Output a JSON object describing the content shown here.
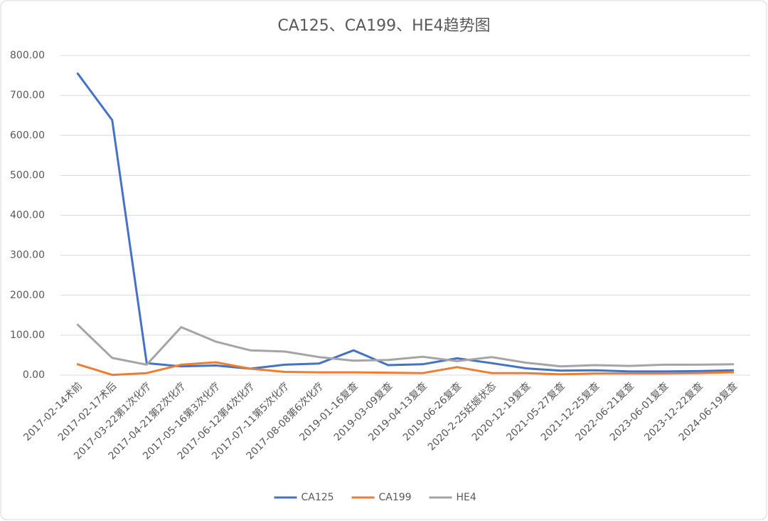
{
  "chart_data": {
    "type": "line",
    "title": "CA125、CA199、HE4趋势图",
    "categories": [
      "2017-02-14术前",
      "2017-02-17术后",
      "2017-03-22第1次化疗",
      "2017-04-21第2次化疗",
      "2017-05-16第3次化疗",
      "2017-06-12第4次化疗",
      "2017-07-11第5次化疗",
      "2017-08-08第6次化疗",
      "2019-01-16复查",
      "2019-03-09复查",
      "2019-04-13复查",
      "2019-06-26复查",
      "2020-2-25妊娠状态",
      "2020-12-19复查",
      "2021-05-27复查",
      "2021-12-25复查",
      "2022-06-21复查",
      "2023-06-01复查",
      "2023-12-22复查",
      "2024-06-19复查"
    ],
    "series": [
      {
        "name": "CA125",
        "color": "#4472c4",
        "values": [
          755,
          638,
          30,
          22,
          24,
          16,
          26,
          29,
          62,
          25,
          27,
          42,
          30,
          17,
          11,
          12,
          9,
          9,
          10,
          12
        ]
      },
      {
        "name": "CA199",
        "color": "#ed7d31",
        "values": [
          27,
          0.5,
          5,
          26,
          32,
          16,
          8,
          7,
          7,
          6,
          5,
          20,
          5,
          5,
          2,
          4,
          4,
          4,
          5,
          7
        ]
      },
      {
        "name": "HE4",
        "color": "#a5a5a5",
        "values": [
          126,
          43,
          26,
          120,
          84,
          62,
          59,
          45,
          36,
          38,
          46,
          35,
          45,
          31,
          22,
          25,
          23,
          26,
          26,
          27
        ]
      }
    ],
    "ylim": [
      0,
      800
    ],
    "yticks": [
      {
        "value": 0,
        "label": "0.00"
      },
      {
        "value": 100,
        "label": "100.00"
      },
      {
        "value": 200,
        "label": "200.00"
      },
      {
        "value": 300,
        "label": "300.00"
      },
      {
        "value": 400,
        "label": "400.00"
      },
      {
        "value": 500,
        "label": "500.00"
      },
      {
        "value": 600,
        "label": "600.00"
      },
      {
        "value": 700,
        "label": "700.00"
      },
      {
        "value": 800,
        "label": "800.00"
      }
    ],
    "grid": true,
    "legend": "bottom"
  }
}
